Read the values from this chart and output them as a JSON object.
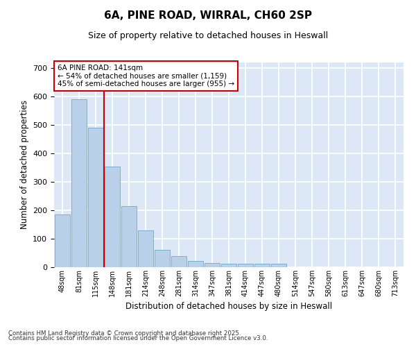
{
  "title_line1": "6A, PINE ROAD, WIRRAL, CH60 2SP",
  "title_line2": "Size of property relative to detached houses in Heswall",
  "xlabel": "Distribution of detached houses by size in Heswall",
  "ylabel": "Number of detached properties",
  "annotation_title": "6A PINE ROAD: 141sqm",
  "annotation_line1": "← 54% of detached houses are smaller (1,159)",
  "annotation_line2": "45% of semi-detached houses are larger (955) →",
  "footer_line1": "Contains HM Land Registry data © Crown copyright and database right 2025.",
  "footer_line2": "Contains public sector information licensed under the Open Government Licence v3.0.",
  "bar_color": "#b8d0e8",
  "bar_edge_color": "#7aafd4",
  "background_color": "#dce8f5",
  "fig_background": "#ffffff",
  "grid_color": "#ffffff",
  "vline_color": "#cc0000",
  "vline_x": 2.52,
  "categories": [
    "48sqm",
    "81sqm",
    "115sqm",
    "148sqm",
    "181sqm",
    "214sqm",
    "248sqm",
    "281sqm",
    "314sqm",
    "347sqm",
    "381sqm",
    "414sqm",
    "447sqm",
    "480sqm",
    "514sqm",
    "547sqm",
    "580sqm",
    "613sqm",
    "647sqm",
    "680sqm",
    "713sqm"
  ],
  "values": [
    185,
    590,
    490,
    355,
    215,
    130,
    60,
    38,
    22,
    15,
    12,
    12,
    11,
    12,
    0,
    0,
    0,
    0,
    0,
    0,
    0
  ],
  "ylim": [
    0,
    720
  ],
  "yticks": [
    0,
    100,
    200,
    300,
    400,
    500,
    600,
    700
  ]
}
